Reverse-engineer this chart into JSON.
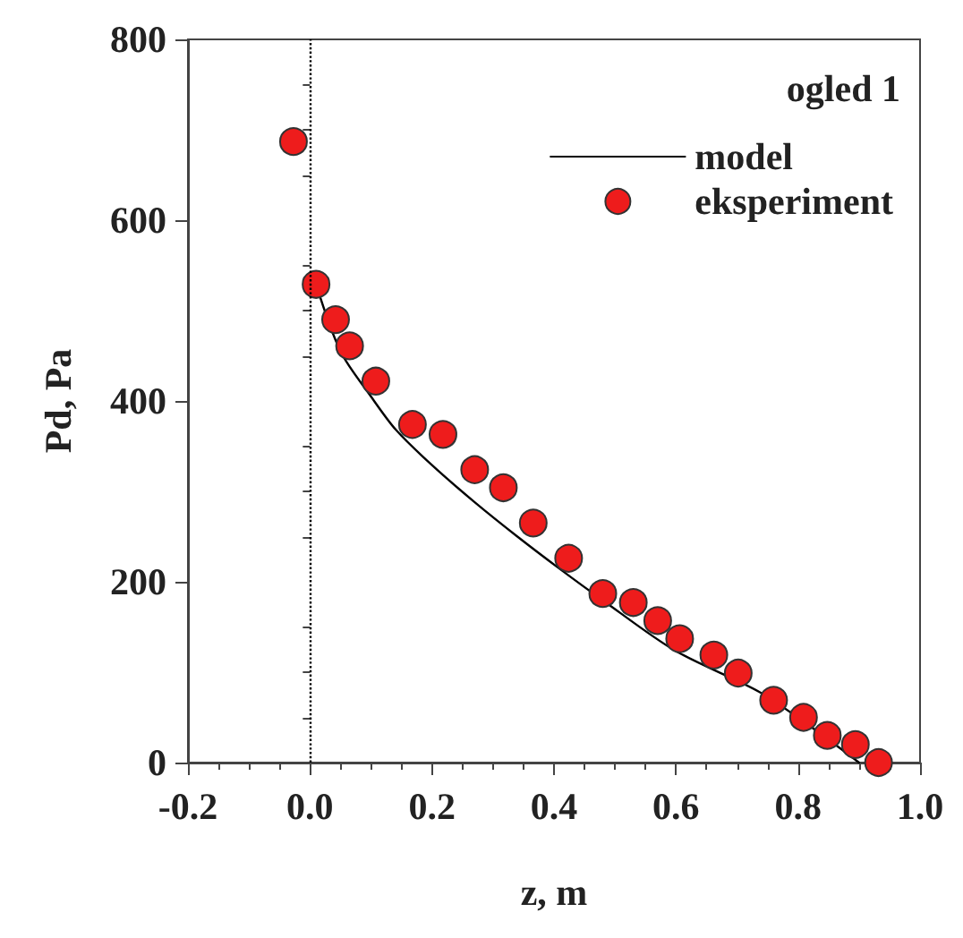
{
  "chart_data": {
    "type": "scatter",
    "xlabel": "z, m",
    "ylabel": "Pd, Pa",
    "legend_title": "ogled 1",
    "legend": "top right",
    "grid": false,
    "xlim": [
      -0.2,
      1.0
    ],
    "xticks": [
      -0.2,
      {
        "value": 0,
        "label": "0.0"
      },
      0.2,
      0.4,
      0.6,
      0.8,
      {
        "value": 1,
        "label": "1.0"
      }
    ],
    "ylim": [
      0,
      800
    ],
    "yticks": [
      0,
      200,
      400,
      600,
      800
    ],
    "ref_lines": [
      {
        "axis": "x",
        "value": 0,
        "line_style": "dotted",
        "color": "#000000"
      }
    ],
    "series": [
      {
        "name": "model",
        "type": "line",
        "color": "#000000",
        "marker": "none",
        "line_style": "solid",
        "x": [
          0.01,
          0.05,
          0.1,
          0.141,
          0.2,
          0.27,
          0.34,
          0.41,
          0.479,
          0.598,
          0.737,
          0.82,
          0.9
        ],
        "values": [
          529,
          455,
          405,
          368,
          329,
          288,
          250,
          214,
          180,
          124,
          78,
          40,
          0
        ]
      },
      {
        "name": "eksperiment",
        "color": "#ee1c1c",
        "marker": "circle",
        "x": [
          -0.027,
          0.01,
          0.042,
          0.065,
          0.108,
          0.168,
          0.218,
          0.27,
          0.317,
          0.366,
          0.424,
          0.48,
          0.53,
          0.57,
          0.606,
          0.662,
          0.702,
          0.76,
          0.809,
          0.848,
          0.894,
          0.932
        ],
        "values": [
          687,
          529,
          490,
          461,
          422,
          374,
          363,
          324,
          304,
          265,
          226,
          187,
          177,
          157,
          137,
          119,
          99,
          69,
          50,
          30,
          20,
          0
        ]
      }
    ]
  }
}
